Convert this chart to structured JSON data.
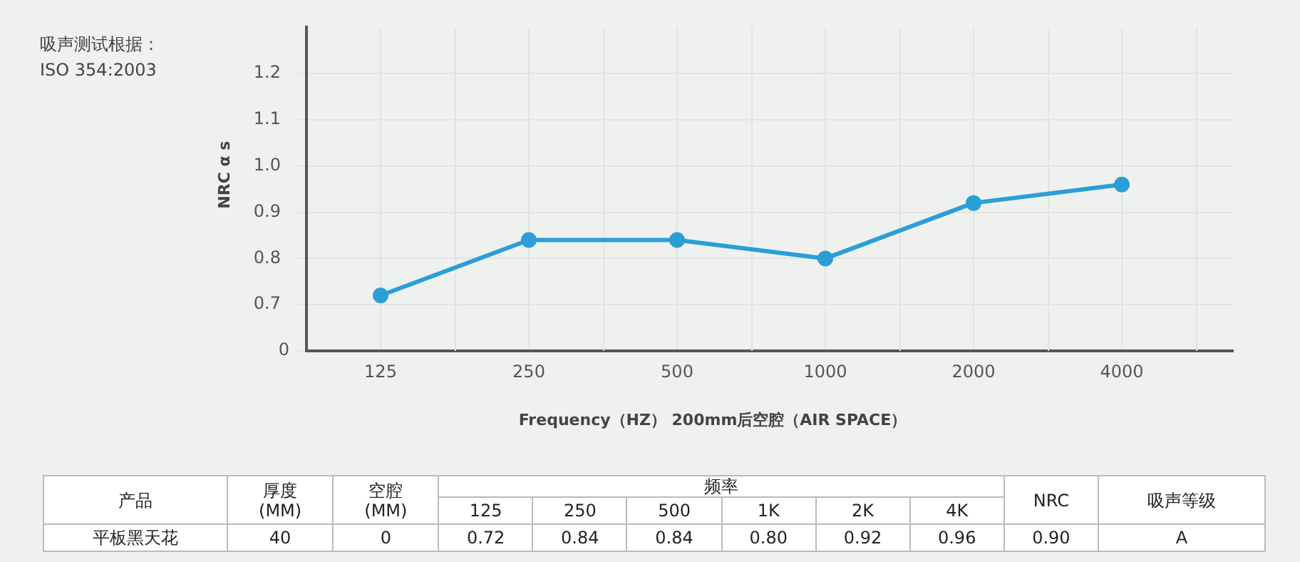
{
  "chart_data": {
    "type": "line",
    "xlabel": "Frequency（HZ） 200mm后空腔（AIR SPACE）",
    "ylabel": "NRC α s",
    "categories": [
      "125",
      "250",
      "500",
      "1000",
      "2000",
      "4000"
    ],
    "series": [
      {
        "color": "#2a9fd6",
        "values": [
          0.72,
          0.84,
          0.84,
          0.8,
          0.92,
          0.96
        ]
      }
    ],
    "ylim": [
      0.6,
      1.3
    ],
    "yticks": [
      {
        "value": 0.6,
        "label": null
      },
      0.7,
      0.8,
      0.9,
      {
        "value": 1,
        "label": "1.0"
      },
      1.1,
      1.2
    ],
    "grid": true,
    "legend": false,
    "marker": "circle",
    "line_style": "solid",
    "annotations": [
      "吸声测试根据：",
      "ISO 354:2003",
      "产品",
      "厚度\n(MM)",
      "空腔\n(MM)",
      "频率",
      "NRC",
      "吸声等级",
      "平板黑天花",
      "40",
      "0",
      "0.90",
      "A",
      "125",
      "250",
      "500",
      "1K",
      "2K",
      "4K",
      "0.72",
      "0.84",
      "0.84",
      "0.80",
      "0.92",
      "0.96",
      "0"
    ]
  }
}
